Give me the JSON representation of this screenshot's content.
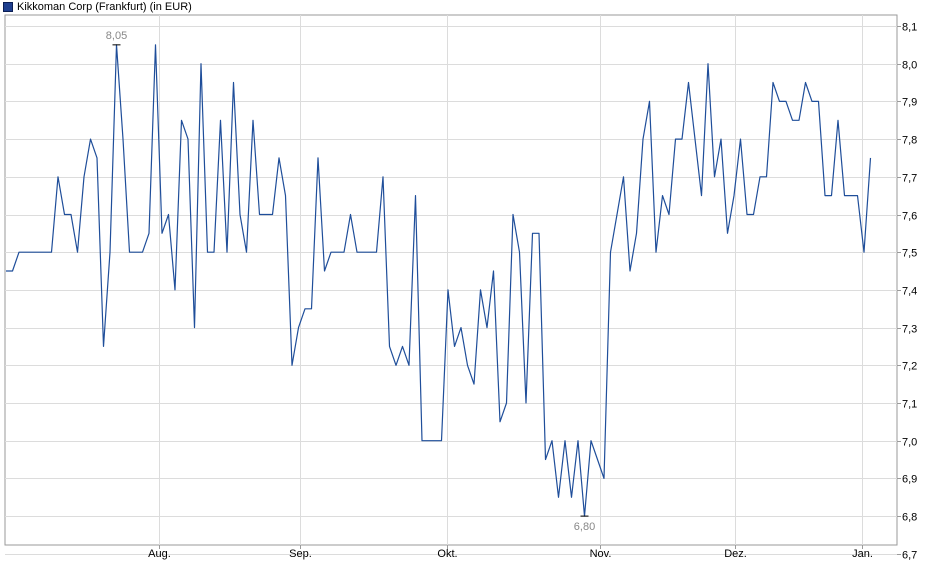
{
  "chart_data": {
    "type": "line",
    "title": "Kikkoman Corp (Frankfurt) (in EUR)",
    "legend": {
      "placement": "top-left",
      "label": "Kikkoman Corp (Frankfurt) (in EUR)"
    },
    "xlabel": "",
    "ylabel": "",
    "ylim": [
      6.65,
      8.14
    ],
    "yticks": [
      "8,1",
      "8,0",
      "7,9",
      "7,8",
      "7,7",
      "7,6",
      "7,5",
      "7,4",
      "7,3",
      "7,2",
      "7,1",
      "7,0",
      "6,9",
      "6,8",
      "6,7"
    ],
    "xtick_labels": [
      "Aug.",
      "Sep.",
      "Okt.",
      "Nov.",
      "Dez.",
      "Jan."
    ],
    "grid": true,
    "line_color": "#1f4e9a",
    "annotations": {
      "max_label": "8,05",
      "min_label": "6,80"
    },
    "series": [
      {
        "values": [
          7.45,
          7.45,
          7.5,
          7.5,
          7.5,
          7.5,
          7.5,
          7.5,
          7.7,
          7.6,
          7.6,
          7.5,
          7.7,
          7.8,
          7.75,
          7.25,
          7.5,
          8.05,
          7.8,
          7.5,
          7.5,
          7.5,
          7.55,
          8.05,
          7.55,
          7.6,
          7.4,
          7.85,
          7.8,
          7.3,
          8.0,
          7.5,
          7.5,
          7.85,
          7.5,
          7.95,
          7.6,
          7.5,
          7.85,
          7.6,
          7.6,
          7.6,
          7.75,
          7.65,
          7.2,
          7.3,
          7.35,
          7.35,
          7.75,
          7.45,
          7.5,
          7.5,
          7.5,
          7.6,
          7.5,
          7.5,
          7.5,
          7.5,
          7.7,
          7.25,
          7.2,
          7.25,
          7.2,
          7.65,
          7.0,
          7.0,
          7.0,
          7.0,
          7.4,
          7.25,
          7.3,
          7.2,
          7.15,
          7.4,
          7.3,
          7.45,
          7.05,
          7.1,
          7.6,
          7.5,
          7.1,
          7.55,
          7.55,
          6.95,
          7.0,
          6.85,
          7.0,
          6.85,
          7.0,
          6.8,
          7.0,
          6.95,
          6.9,
          7.5,
          7.6,
          7.7,
          7.45,
          7.55,
          7.8,
          7.9,
          7.5,
          7.65,
          7.6,
          7.8,
          7.8,
          7.95,
          7.8,
          7.65,
          8.0,
          7.7,
          7.8,
          7.55,
          7.65,
          7.8,
          7.6,
          7.6,
          7.7,
          7.7,
          7.95,
          7.9,
          7.9,
          7.85,
          7.85,
          7.95,
          7.9,
          7.9,
          7.65,
          7.65,
          7.85,
          7.65,
          7.65,
          7.65,
          7.5,
          7.75
        ]
      }
    ]
  }
}
